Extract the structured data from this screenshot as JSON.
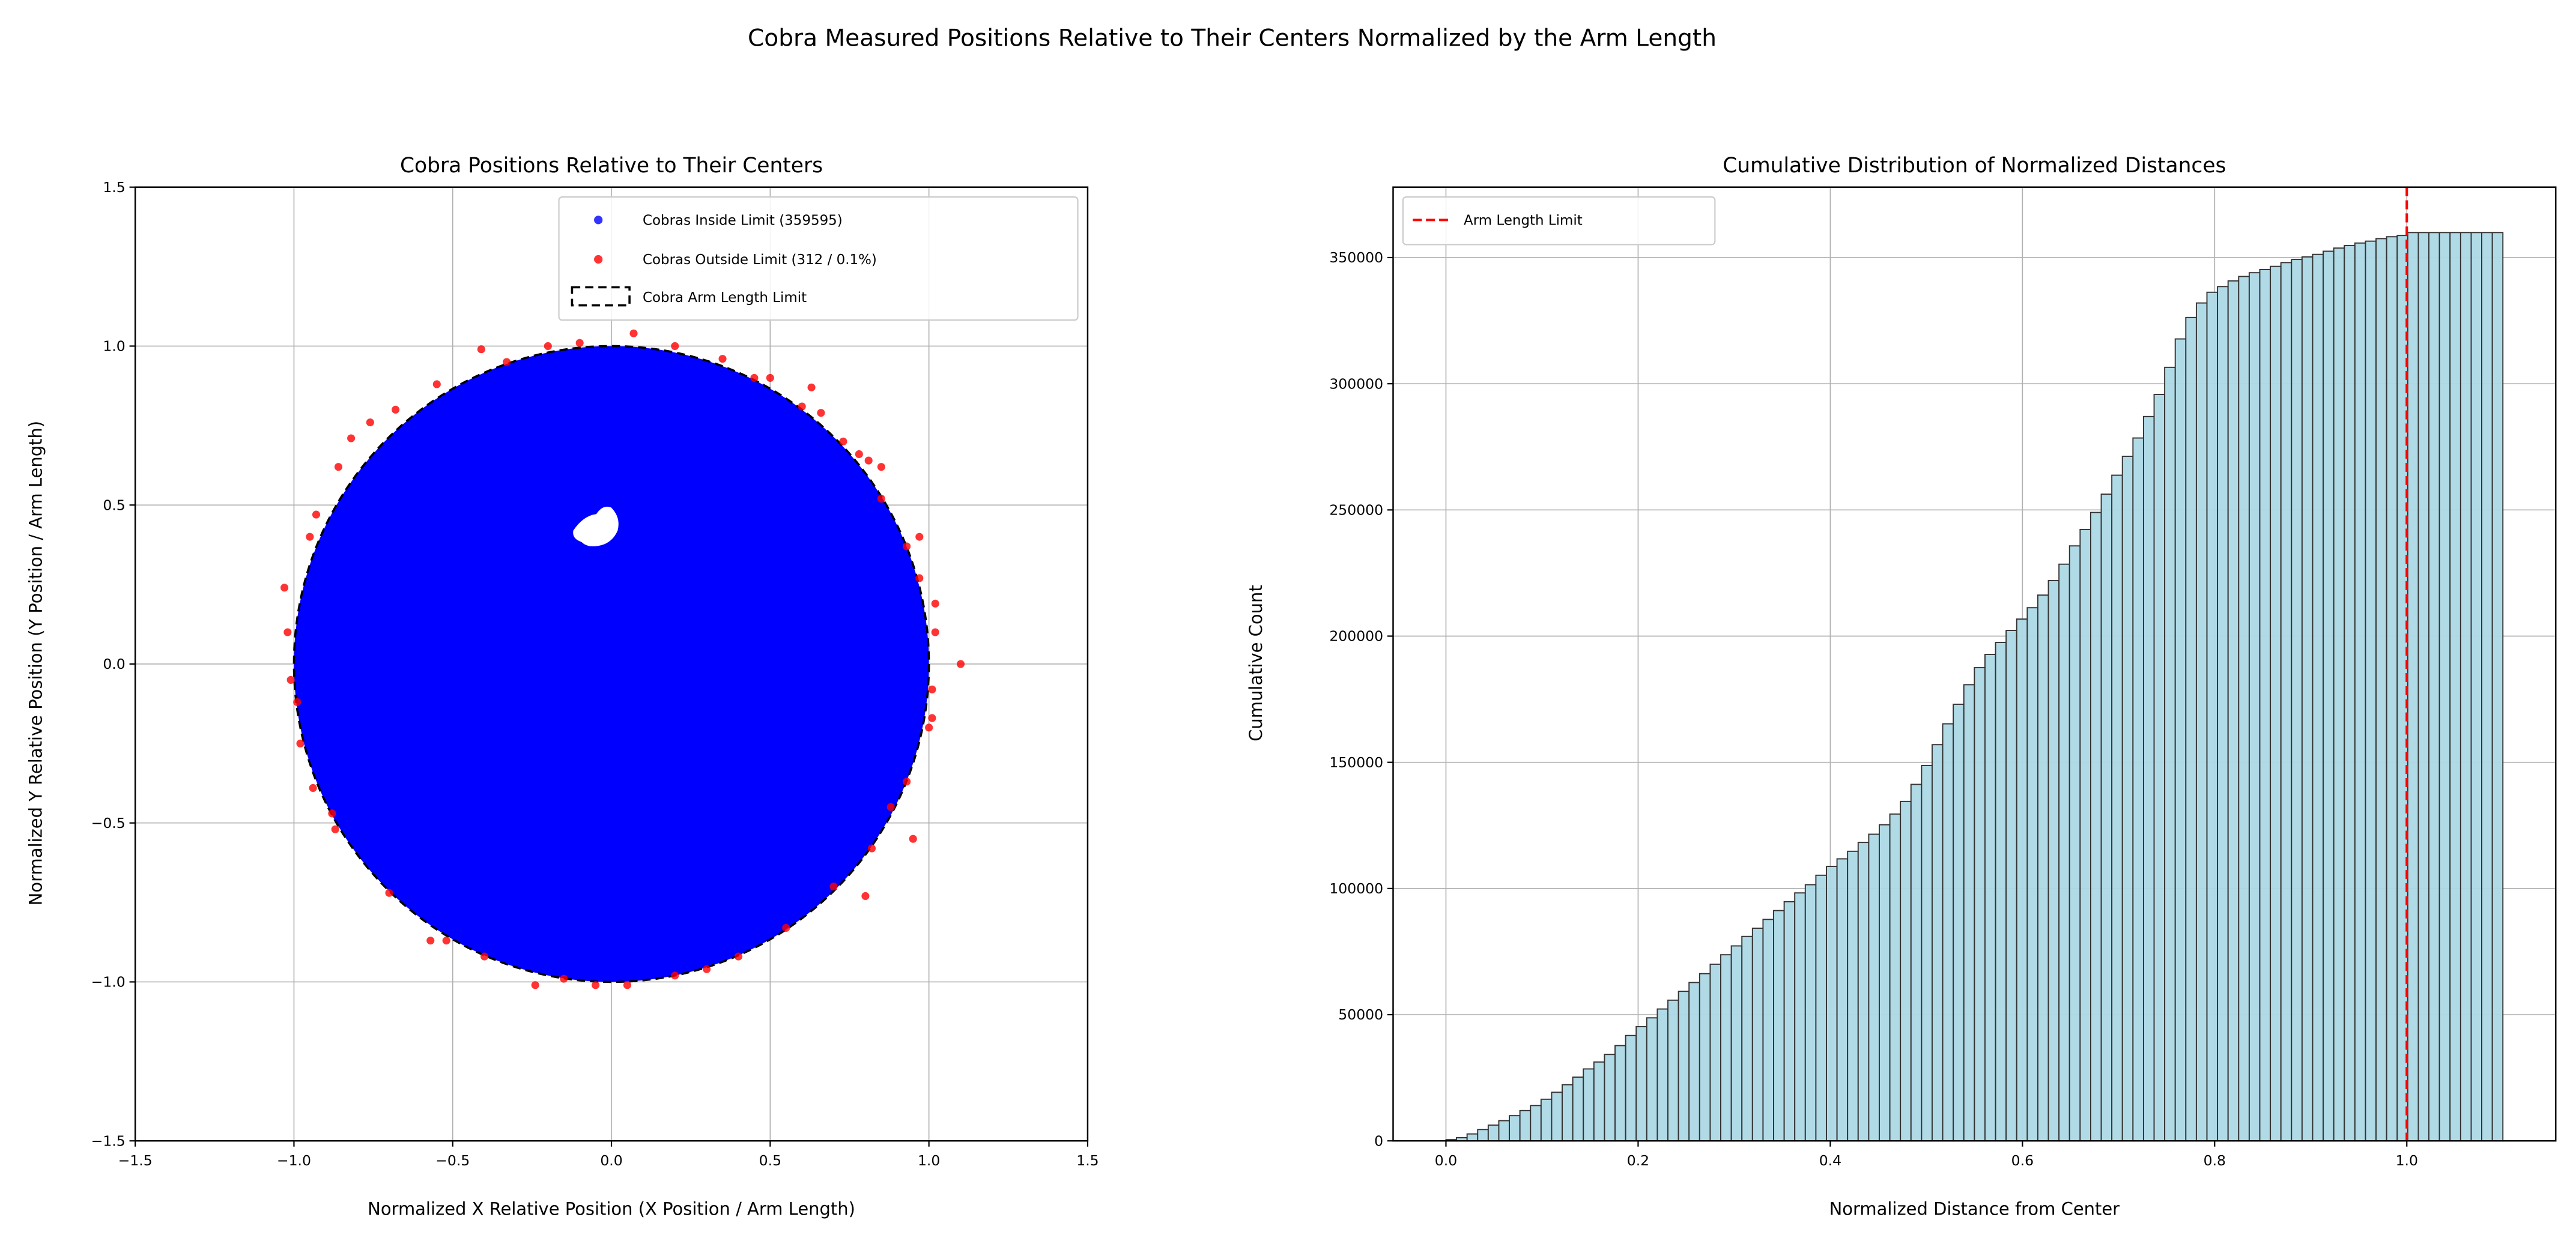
{
  "suptitle": "Cobra Measured Positions Relative to Their Centers Normalized by the Arm Length",
  "chart_data": [
    {
      "type": "scatter",
      "title": "Cobra Positions Relative to Their Centers",
      "xlabel": "Normalized X Relative Position (X Position / Arm Length)",
      "ylabel": "Normalized Y Relative Position (Y Position / Arm Length)",
      "xlim": [
        -1.5,
        1.5
      ],
      "ylim": [
        -1.5,
        1.5
      ],
      "xticks": [
        "-1.5",
        "-1.0",
        "-0.5",
        "0.0",
        "0.5",
        "1.0",
        "1.5"
      ],
      "yticks": [
        "-1.5",
        "-1.0",
        "-0.5",
        "0.0",
        "0.5",
        "1.0",
        "1.5"
      ],
      "grid": true,
      "legend_position": "top-right",
      "legend": [
        "Cobras Inside Limit (359595)",
        "Cobras Outside Limit (312 / 0.1%)",
        "Cobra Arm Length Limit"
      ],
      "inside_count": 359595,
      "outside_count": 312,
      "limit_radius": 1.0,
      "inside_color": "#0000ff",
      "outside_color": "#ff0000",
      "inside_region": {
        "shape": "disk",
        "radius": 1.0,
        "empty_patch_center": [
          -0.02,
          0.44
        ]
      },
      "outside_points": [
        [
          1.1,
          0.0
        ],
        [
          -1.03,
          0.24
        ],
        [
          -0.82,
          0.71
        ],
        [
          -0.76,
          0.76
        ],
        [
          -0.41,
          0.99
        ],
        [
          0.07,
          1.04
        ],
        [
          0.63,
          0.87
        ],
        [
          0.81,
          0.64
        ],
        [
          0.85,
          0.62
        ],
        [
          0.97,
          0.4
        ],
        [
          1.02,
          0.19
        ],
        [
          1.02,
          0.1
        ],
        [
          1.01,
          -0.08
        ],
        [
          1.01,
          -0.17
        ],
        [
          0.95,
          -0.55
        ],
        [
          0.8,
          -0.73
        ],
        [
          -0.24,
          -1.01
        ],
        [
          -0.05,
          -1.01
        ],
        [
          0.05,
          -1.01
        ],
        [
          -0.57,
          -0.87
        ],
        [
          -0.52,
          -0.87
        ],
        [
          -0.87,
          -0.52
        ],
        [
          -0.94,
          -0.39
        ],
        [
          -0.98,
          -0.25
        ],
        [
          -1.01,
          -0.05
        ],
        [
          -1.02,
          0.1
        ],
        [
          -0.95,
          0.4
        ],
        [
          -0.93,
          0.47
        ],
        [
          -0.86,
          0.62
        ],
        [
          -0.68,
          0.8
        ],
        [
          -0.55,
          0.88
        ],
        [
          -0.33,
          0.95
        ],
        [
          -0.2,
          1.0
        ],
        [
          -0.1,
          1.01
        ],
        [
          0.2,
          1.0
        ],
        [
          0.35,
          0.96
        ],
        [
          0.5,
          0.9
        ],
        [
          0.66,
          0.79
        ],
        [
          0.73,
          0.7
        ],
        [
          0.85,
          0.52
        ],
        [
          0.93,
          0.37
        ],
        [
          0.97,
          0.27
        ],
        [
          1.0,
          -0.2
        ],
        [
          0.93,
          -0.37
        ],
        [
          0.88,
          -0.45
        ],
        [
          0.82,
          -0.58
        ],
        [
          0.7,
          -0.7
        ],
        [
          0.55,
          -0.83
        ],
        [
          0.4,
          -0.92
        ],
        [
          0.3,
          -0.96
        ],
        [
          0.2,
          -0.98
        ],
        [
          -0.15,
          -0.99
        ],
        [
          -0.4,
          -0.92
        ],
        [
          -0.7,
          -0.72
        ],
        [
          -0.88,
          -0.47
        ],
        [
          -0.99,
          -0.12
        ],
        [
          0.45,
          0.9
        ],
        [
          0.6,
          0.81
        ],
        [
          0.78,
          0.66
        ]
      ]
    },
    {
      "type": "bar",
      "title": "Cumulative Distribution of Normalized Distances",
      "xlabel": "Normalized Distance from Center",
      "ylabel": "Cumulative Count",
      "xlim": [
        -0.055,
        1.155
      ],
      "ylim": [
        0,
        377900
      ],
      "xticks": [
        "0.0",
        "0.2",
        "0.4",
        "0.6",
        "0.8",
        "1.0"
      ],
      "yticks": [
        "0",
        "50000",
        "100000",
        "150000",
        "200000",
        "250000",
        "300000",
        "350000"
      ],
      "grid": true,
      "legend_position": "top-left",
      "legend": [
        "Arm Length Limit"
      ],
      "limit_x": 1.0,
      "bin_start": 0.0,
      "bin_width": 0.011,
      "bar_color": "#add8e6",
      "limit_color": "#ff0000",
      "values": [
        500,
        1250,
        2750,
        4500,
        6250,
        8000,
        10000,
        12000,
        14000,
        16500,
        19250,
        22250,
        25250,
        28500,
        31250,
        34250,
        37750,
        41750,
        45250,
        48750,
        52250,
        55750,
        59250,
        62750,
        66250,
        70000,
        73750,
        77250,
        81000,
        84250,
        87750,
        91250,
        94750,
        98250,
        101500,
        105250,
        108750,
        111750,
        114750,
        118250,
        121500,
        125250,
        129500,
        134500,
        141250,
        148750,
        157000,
        165250,
        173000,
        180750,
        187500,
        192750,
        197500,
        202250,
        206750,
        211250,
        216250,
        222000,
        228500,
        235750,
        242250,
        249000,
        256250,
        263750,
        271250,
        278500,
        287000,
        295750,
        306500,
        317750,
        326250,
        332000,
        336250,
        338500,
        340750,
        342500,
        344000,
        345250,
        346500,
        348000,
        349250,
        350250,
        351250,
        352500,
        353750,
        354750,
        355750,
        356500,
        357500,
        358250,
        358750,
        359907,
        359907,
        359907,
        359907,
        359907,
        359907,
        359907,
        359907,
        359907
      ]
    }
  ]
}
